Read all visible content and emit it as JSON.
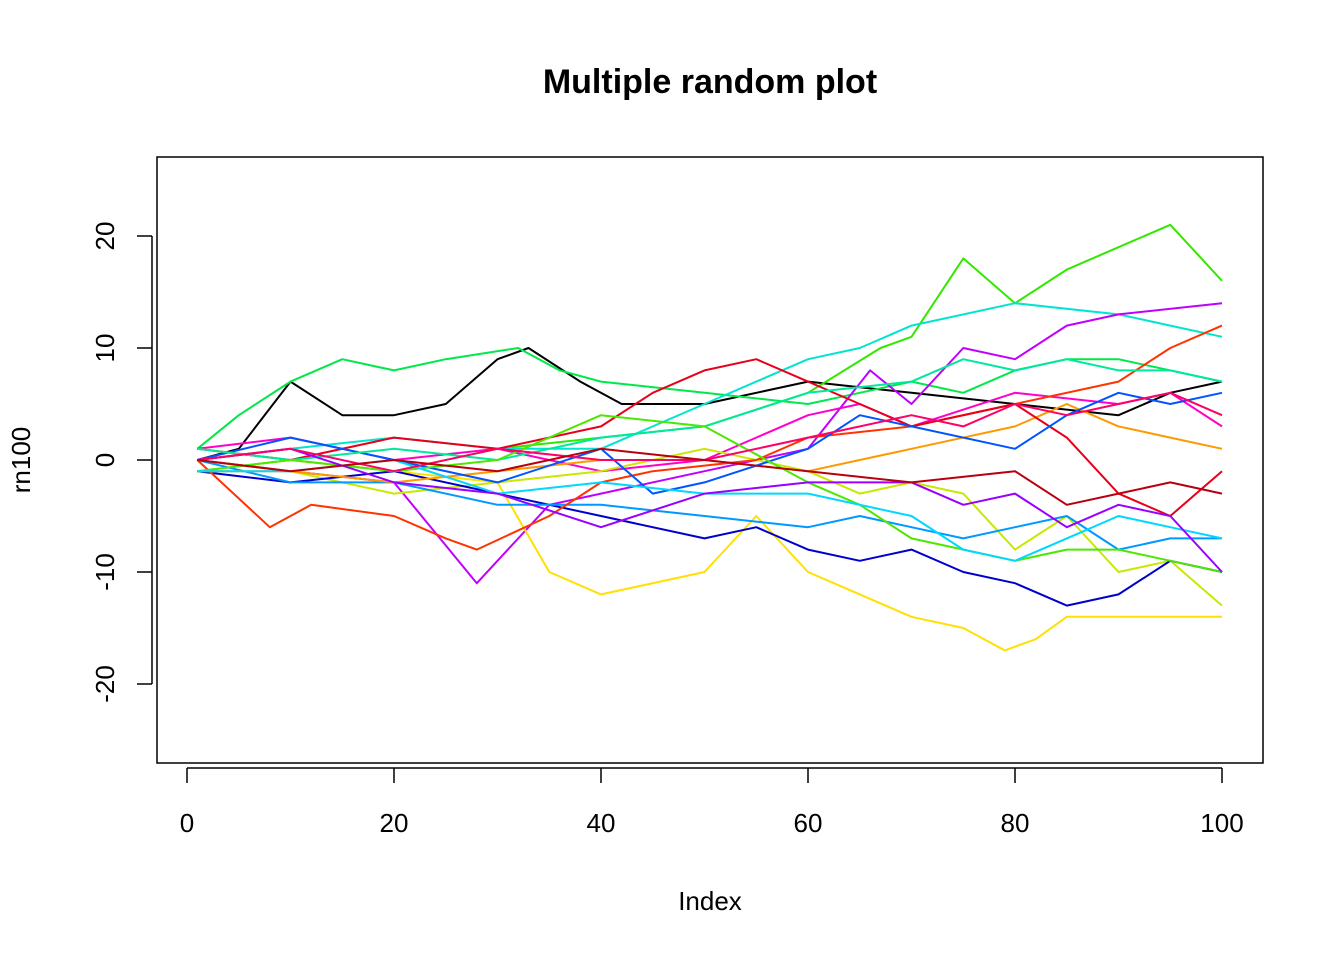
{
  "chart_data": {
    "type": "line",
    "title": "Multiple random plot",
    "xlabel": "Index",
    "ylabel": "rn100",
    "xlim": [
      0,
      100
    ],
    "ylim": [
      -25,
      25
    ],
    "xticks": [
      0,
      20,
      40,
      60,
      80,
      100
    ],
    "yticks": [
      -20,
      -10,
      0,
      10,
      20
    ],
    "grid": false,
    "legend": "none",
    "series": [
      {
        "color": "#000000",
        "x": [
          1,
          5,
          10,
          15,
          20,
          25,
          30,
          33,
          38,
          42,
          50,
          60,
          70,
          80,
          90,
          95,
          100
        ],
        "y": [
          0,
          1,
          7,
          4,
          4,
          5,
          9,
          10,
          7,
          5,
          5,
          7,
          6,
          5,
          4,
          6,
          7
        ]
      },
      {
        "color": "#00E84A",
        "x": [
          1,
          5,
          10,
          15,
          20,
          25,
          32,
          36,
          40,
          50,
          60,
          65,
          70,
          75,
          80,
          85,
          90,
          100
        ],
        "y": [
          1,
          4,
          7,
          9,
          8,
          9,
          10,
          8,
          7,
          6,
          5,
          6,
          7,
          6,
          8,
          9,
          9,
          7
        ]
      },
      {
        "color": "#33E800",
        "x": [
          1,
          10,
          20,
          30,
          40,
          50,
          60,
          67,
          70,
          75,
          80,
          85,
          90,
          95,
          100
        ],
        "y": [
          -1,
          0,
          -1,
          1,
          2,
          3,
          6,
          10,
          11,
          18,
          14,
          17,
          19,
          21,
          16
        ]
      },
      {
        "color": "#00E5D0",
        "x": [
          1,
          10,
          20,
          30,
          40,
          50,
          60,
          65,
          70,
          80,
          90,
          95,
          100
        ],
        "y": [
          0,
          1,
          2,
          1,
          1,
          5,
          9,
          10,
          12,
          14,
          13,
          12,
          11
        ]
      },
      {
        "color": "#C000FF",
        "x": [
          1,
          10,
          20,
          28,
          35,
          40,
          50,
          60,
          66,
          70,
          75,
          80,
          85,
          90,
          100
        ],
        "y": [
          0,
          -1,
          -2,
          -11,
          -4,
          -3,
          -1,
          1,
          8,
          5,
          10,
          9,
          12,
          13,
          14
        ]
      },
      {
        "color": "#FF00CC",
        "x": [
          1,
          10,
          20,
          30,
          40,
          50,
          60,
          65,
          70,
          80,
          90,
          95,
          100
        ],
        "y": [
          1,
          2,
          0,
          1,
          -1,
          0,
          4,
          5,
          3,
          6,
          5,
          6,
          3
        ]
      },
      {
        "color": "#FFE000",
        "x": [
          1,
          10,
          20,
          30,
          35,
          40,
          50,
          55,
          60,
          65,
          70,
          75,
          79,
          82,
          85,
          90,
          95,
          100
        ],
        "y": [
          1,
          0,
          -1,
          -2,
          -10,
          -12,
          -10,
          -5,
          -10,
          -12,
          -14,
          -15,
          -17,
          -16,
          -14,
          -14,
          -14,
          -14
        ]
      },
      {
        "color": "#C8E800",
        "x": [
          1,
          10,
          20,
          30,
          40,
          50,
          60,
          65,
          70,
          75,
          80,
          85,
          90,
          95,
          100
        ],
        "y": [
          0,
          -1,
          -3,
          -2,
          -1,
          1,
          -1,
          -3,
          -2,
          -3,
          -8,
          -5,
          -10,
          -9,
          -13
        ]
      },
      {
        "color": "#0000CC",
        "x": [
          1,
          10,
          20,
          30,
          40,
          50,
          55,
          60,
          65,
          70,
          75,
          80,
          85,
          90,
          95,
          100
        ],
        "y": [
          -1,
          -2,
          -1,
          -3,
          -5,
          -7,
          -6,
          -8,
          -9,
          -8,
          -10,
          -11,
          -13,
          -12,
          -9,
          -10
        ]
      },
      {
        "color": "#0099FF",
        "x": [
          1,
          10,
          20,
          30,
          40,
          50,
          60,
          65,
          70,
          75,
          80,
          85,
          90,
          95,
          100
        ],
        "y": [
          0,
          -2,
          -2,
          -4,
          -4,
          -5,
          -6,
          -5,
          -6,
          -7,
          -6,
          -5,
          -8,
          -7,
          -7
        ]
      },
      {
        "color": "#FF3300",
        "x": [
          1,
          8,
          12,
          20,
          25,
          28,
          35,
          40,
          45,
          55,
          60,
          70,
          80,
          90,
          95,
          100
        ],
        "y": [
          0,
          -6,
          -4,
          -5,
          -7,
          -8,
          -5,
          -2,
          -1,
          0,
          2,
          3,
          5,
          7,
          10,
          12
        ]
      },
      {
        "color": "#FF9900",
        "x": [
          1,
          10,
          20,
          30,
          40,
          50,
          60,
          70,
          80,
          85,
          90,
          95,
          100
        ],
        "y": [
          -1,
          -1,
          -2,
          -1,
          0,
          0,
          -1,
          1,
          3,
          5,
          3,
          2,
          1
        ]
      },
      {
        "color": "#E8001A",
        "x": [
          1,
          10,
          20,
          30,
          40,
          45,
          50,
          55,
          60,
          65,
          70,
          80,
          85,
          90,
          95,
          100
        ],
        "y": [
          1,
          0,
          2,
          1,
          3,
          6,
          8,
          9,
          7,
          5,
          3,
          5,
          2,
          -3,
          -5,
          -1
        ]
      },
      {
        "color": "#0055FF",
        "x": [
          1,
          10,
          20,
          30,
          40,
          45,
          50,
          60,
          65,
          70,
          80,
          85,
          90,
          95,
          100
        ],
        "y": [
          0,
          2,
          0,
          -2,
          1,
          -3,
          -2,
          1,
          4,
          3,
          1,
          4,
          6,
          5,
          6
        ]
      },
      {
        "color": "#00E8A0",
        "x": [
          1,
          10,
          20,
          30,
          40,
          50,
          60,
          70,
          75,
          80,
          85,
          90,
          95,
          100
        ],
        "y": [
          1,
          0,
          1,
          0,
          2,
          3,
          6,
          7,
          9,
          8,
          9,
          8,
          8,
          7
        ]
      },
      {
        "color": "#4CE800",
        "x": [
          1,
          10,
          20,
          30,
          40,
          50,
          60,
          65,
          70,
          75,
          80,
          85,
          90,
          95,
          100
        ],
        "y": [
          -1,
          0,
          -1,
          0,
          4,
          3,
          -2,
          -4,
          -7,
          -8,
          -9,
          -8,
          -8,
          -9,
          -10
        ]
      },
      {
        "color": "#00D8FF",
        "x": [
          1,
          10,
          20,
          30,
          40,
          50,
          60,
          70,
          75,
          80,
          85,
          90,
          95,
          100
        ],
        "y": [
          -1,
          -1,
          0,
          -3,
          -2,
          -3,
          -3,
          -5,
          -8,
          -9,
          -7,
          -5,
          -6,
          -7
        ]
      },
      {
        "color": "#9900FF",
        "x": [
          1,
          10,
          20,
          30,
          40,
          50,
          60,
          70,
          75,
          80,
          85,
          90,
          95,
          100
        ],
        "y": [
          0,
          1,
          -2,
          -3,
          -6,
          -3,
          -2,
          -2,
          -4,
          -3,
          -6,
          -4,
          -5,
          -10
        ]
      },
      {
        "color": "#FF0066",
        "x": [
          1,
          10,
          20,
          30,
          40,
          50,
          60,
          70,
          75,
          80,
          85,
          90,
          95,
          100
        ],
        "y": [
          0,
          1,
          -1,
          1,
          0,
          0,
          2,
          4,
          3,
          5,
          4,
          5,
          6,
          4
        ]
      },
      {
        "color": "#B8000F",
        "x": [
          1,
          10,
          20,
          30,
          40,
          50,
          60,
          70,
          80,
          85,
          90,
          95,
          100
        ],
        "y": [
          0,
          -1,
          0,
          -1,
          1,
          0,
          -1,
          -2,
          -1,
          -4,
          -3,
          -2,
          -3
        ]
      }
    ]
  }
}
